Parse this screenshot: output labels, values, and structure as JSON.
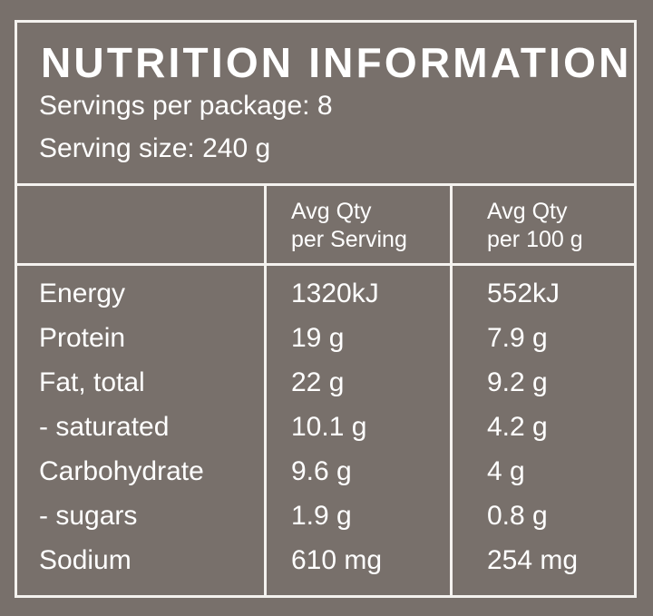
{
  "title": "NUTRITION INFORMATION",
  "servings_per_package": "Servings per package: 8",
  "serving_size": "Serving size: 240 g",
  "columns": [
    {
      "line1": "Avg Qty",
      "line2": "per Serving"
    },
    {
      "line1": "Avg Qty",
      "line2": "per 100 g"
    }
  ],
  "rows": [
    {
      "name": "Energy",
      "per_serving": "1320kJ",
      "per_100g": "552kJ"
    },
    {
      "name": "Protein",
      "per_serving": "19 g",
      "per_100g": "7.9 g"
    },
    {
      "name": "Fat, total",
      "per_serving": "22 g",
      "per_100g": "9.2 g"
    },
    {
      "name": "- saturated",
      "per_serving": "10.1 g",
      "per_100g": "4.2 g"
    },
    {
      "name": "Carbohydrate",
      "per_serving": "9.6 g",
      "per_100g": "4 g"
    },
    {
      "name": "- sugars",
      "per_serving": "1.9 g",
      "per_100g": "0.8 g"
    },
    {
      "name": "Sodium",
      "per_serving": "610 mg",
      "per_100g": "254 mg"
    }
  ],
  "colors": {
    "background": "#78706b",
    "lines": "#f4f2ef",
    "text": "#ffffff"
  }
}
